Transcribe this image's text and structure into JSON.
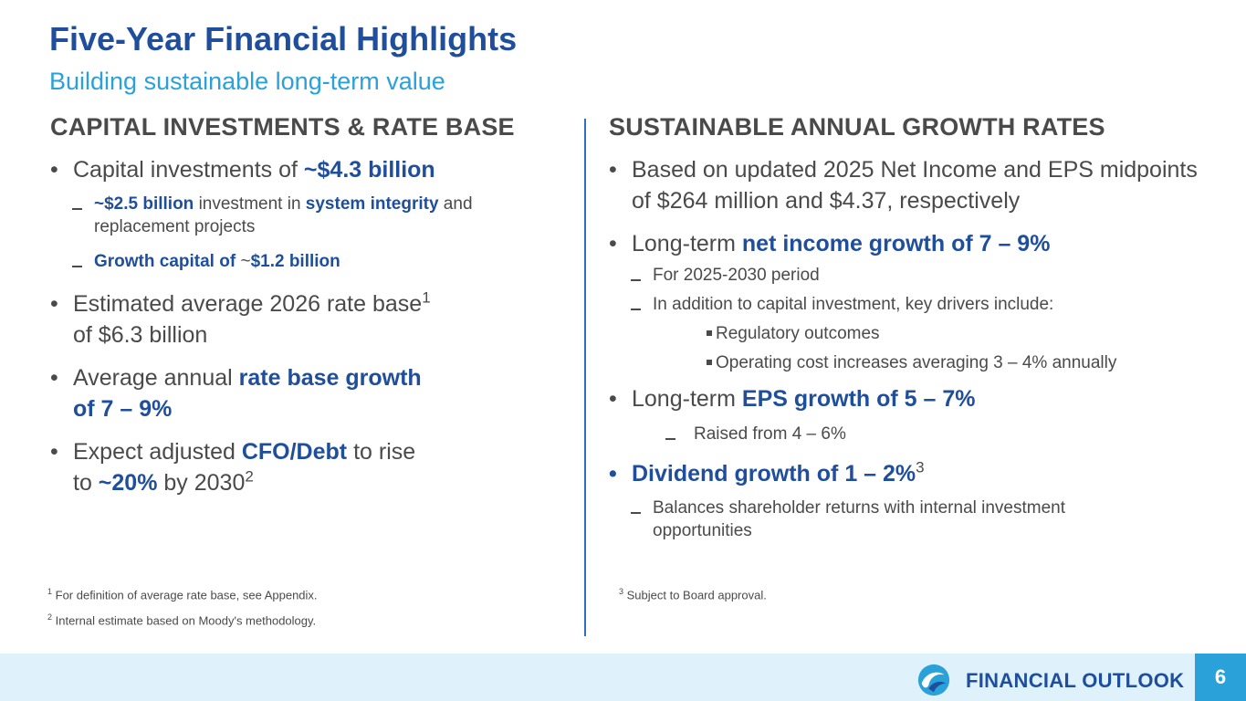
{
  "title": "Five-Year Financial Highlights",
  "subtitle": "Building sustainable long-term value",
  "left": {
    "heading": "CAPITAL INVESTMENTS & RATE BASE",
    "b1": {
      "pre": "Capital investments of ",
      "hl": "~$4.3 billion"
    },
    "b1_sub1": {
      "hl1": "~$2.5 billion",
      "t1": " investment in ",
      "hl2": "system integrity",
      "t2": " and replacement projects"
    },
    "b1_sub2": {
      "hl1": "Growth capital of ",
      "t1": "~",
      "hl2": "$1.2 billion"
    },
    "b2": {
      "line1": "Estimated average 2026 rate base",
      "sup": "1",
      "line2": "of $6.3 billion"
    },
    "b3": {
      "pre": "Average annual ",
      "hl1": "rate base growth",
      "hl2": "of 7 – 9%"
    },
    "b4": {
      "pre": "Expect adjusted ",
      "hl1": "CFO/Debt",
      "mid": " to rise",
      "to": "to ",
      "hl2": "~20%",
      "post": " by 2030",
      "sup": "2"
    },
    "fn1": {
      "num": "1",
      "text": " For definition of average rate base, see Appendix."
    },
    "fn2": {
      "num": "2",
      "text": " Internal estimate based on Moody's methodology."
    }
  },
  "right": {
    "heading": "SUSTAINABLE ANNUAL GROWTH RATES",
    "b1": "Based on updated 2025 Net Income and EPS midpoints of $264 million and $4.37, respectively",
    "b2": {
      "pre": "Long-term ",
      "hl": "net income growth of 7 – 9%"
    },
    "b2_sub1": "For 2025-2030 period",
    "b2_sub2": "In addition to capital investment, key drivers include:",
    "b2_subsub1": "Regulatory outcomes",
    "b2_subsub2": "Operating cost increases averaging 3 – 4% annually",
    "b3": {
      "pre": "Long-term ",
      "hl": "EPS growth of 5 – 7%"
    },
    "b3_sub1": "Raised from 4 – 6%",
    "b4": {
      "text": "Dividend growth of 1 – 2%",
      "sup": "3"
    },
    "b4_sub1": "Balances shareholder returns with internal investment opportunities",
    "fn3": {
      "num": "3",
      "text": " Subject to Board approval."
    }
  },
  "footer": {
    "label": "FINANCIAL OUTLOOK",
    "page": "6",
    "logo_icon": "wave-swirl-icon"
  },
  "colors": {
    "brand_blue": "#1f4e9d",
    "accent_blue": "#2aa1d9",
    "footer_bg": "#dff2fb",
    "text": "#4a4a4a"
  }
}
